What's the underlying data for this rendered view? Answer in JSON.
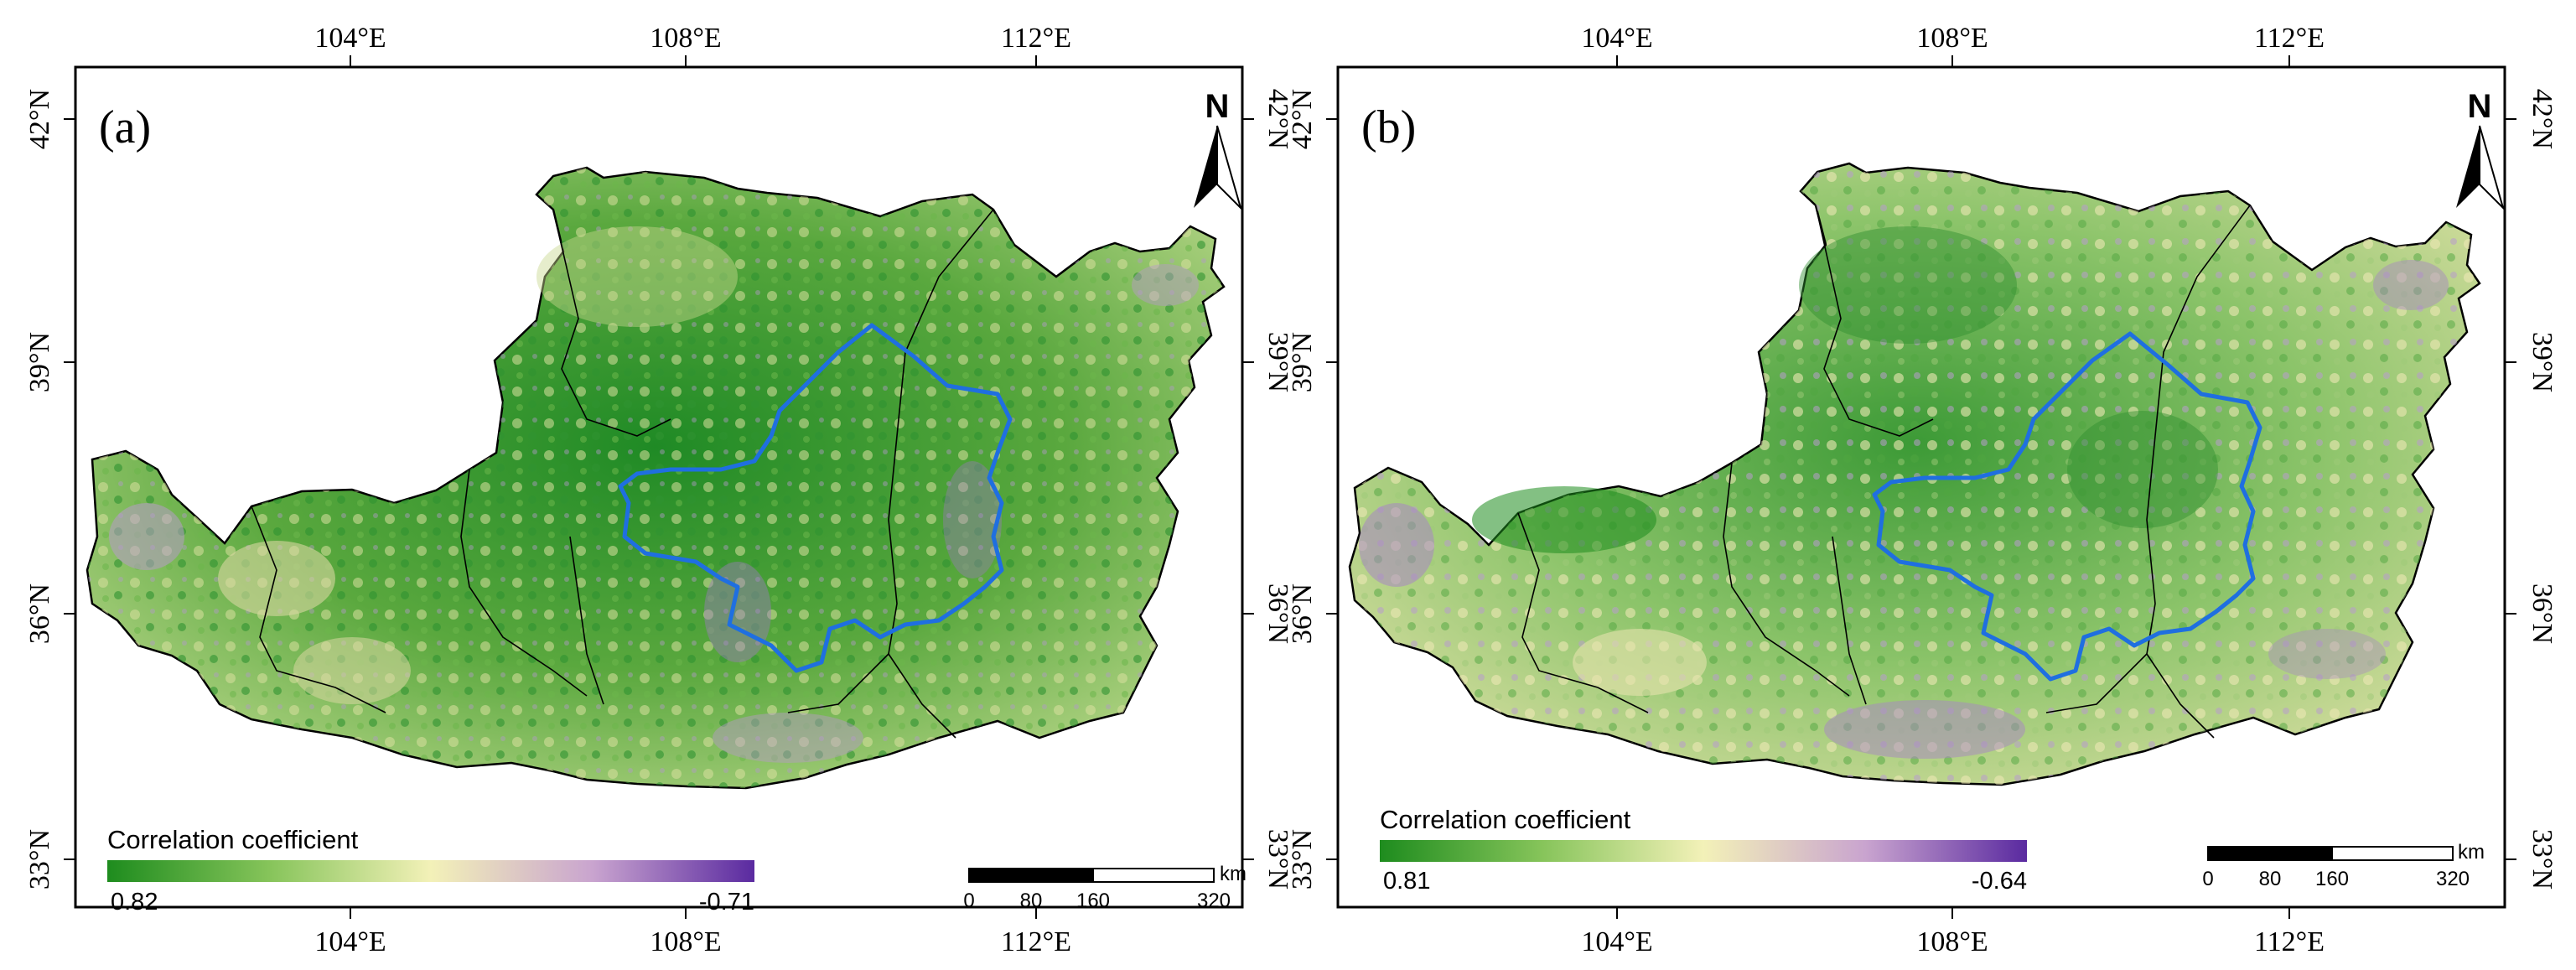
{
  "figure": {
    "axis_labels": {
      "top": [
        "104°E",
        "108°E",
        "112°E"
      ],
      "bottom": [
        "104°E",
        "108°E",
        "112°E"
      ],
      "lat": [
        "42°N",
        "39°N",
        "36°N",
        "33°N"
      ]
    },
    "north_label": "N",
    "panels": [
      {
        "label": "(a)",
        "legend_title": "Correlation coefficient",
        "legend_max": "0.82",
        "legend_min": "-0.71",
        "scale_unit": "km",
        "scale_ticks": [
          "0",
          "80",
          "160",
          "320"
        ],
        "colors": {
          "high": "#1e8c1e",
          "mid": "#f3f1b8",
          "low": "#5a2aa0"
        }
      },
      {
        "label": "(b)",
        "legend_title": "Correlation coefficient",
        "legend_max": "0.81",
        "legend_min": "-0.64",
        "scale_unit": "km",
        "scale_ticks": [
          "0",
          "80",
          "160",
          "320"
        ],
        "colors": {
          "high": "#1e8c1e",
          "mid": "#f3f1b8",
          "low": "#5a2aa0"
        }
      }
    ]
  }
}
